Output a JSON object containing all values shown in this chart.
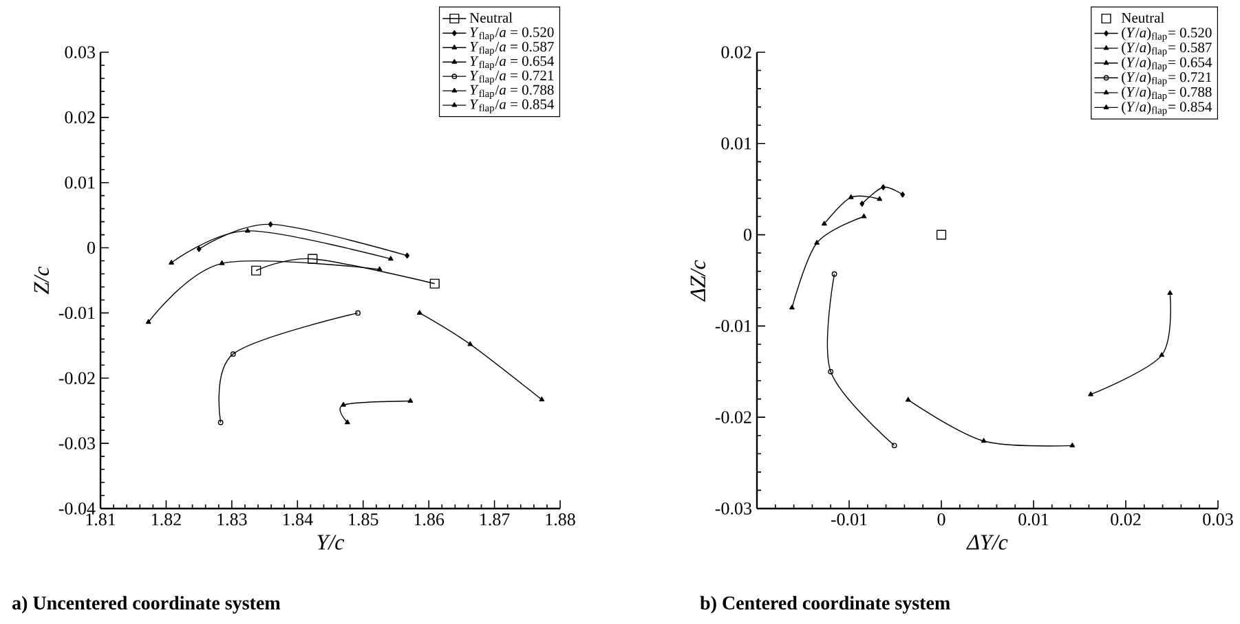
{
  "chart_data": [
    {
      "type": "line",
      "xlabel": "Y/c",
      "ylabel": "Z/c",
      "annotations": [
        "a) Uncentered coordinate system"
      ],
      "xlim": [
        1.81,
        1.88
      ],
      "xticks": [
        1.81,
        1.82,
        1.83,
        1.84,
        1.85,
        1.86,
        1.87,
        1.88
      ],
      "ylim": [
        -0.04,
        0.03
      ],
      "yticks": [
        -0.04,
        -0.03,
        -0.02,
        -0.01,
        0,
        0.01,
        0.02,
        0.03
      ],
      "legend": "top right",
      "line_style": "solid",
      "series": [
        {
          "name": "Neutral",
          "color": "#000000",
          "marker": "square",
          "x": [
            1.8337,
            1.8423,
            1.8609
          ],
          "values": [
            -0.0035,
            -0.0017,
            -0.0055
          ]
        },
        {
          "name": "*Y*$_{flap}$/*a* = 0.520",
          "color": "#000000",
          "marker": "diamond",
          "x": [
            1.825,
            1.8359,
            1.8567
          ],
          "values": [
            -0.0002,
            0.0036,
            -0.0012
          ]
        },
        {
          "name": "*Y*$_{flap}$/*a* = 0.587",
          "color": "#000000",
          "marker": "triangle",
          "x": [
            1.8208,
            1.8324,
            1.8542
          ],
          "values": [
            -0.0023,
            0.0026,
            -0.0017
          ]
        },
        {
          "name": "*Y*$_{flap}$/*a* = 0.654",
          "color": "#000000",
          "marker": "triangle",
          "x": [
            1.8173,
            1.8285,
            1.8525
          ],
          "values": [
            -0.0114,
            -0.0024,
            -0.0033
          ]
        },
        {
          "name": "*Y*$_{flap}$/*a* = 0.721",
          "color": "#000000",
          "marker": "circle",
          "x": [
            1.8492,
            1.8302,
            1.8283
          ],
          "values": [
            -0.01,
            -0.0163,
            -0.0268
          ]
        },
        {
          "name": "*Y*$_{flap}$/*a* = 0.788",
          "color": "#000000",
          "marker": "triangle",
          "x": [
            1.8572,
            1.847,
            1.8476
          ],
          "values": [
            -0.0235,
            -0.0241,
            -0.0268
          ]
        },
        {
          "name": "*Y*$_{flap}$/*a* = 0.854",
          "color": "#000000",
          "marker": "triangle",
          "x": [
            1.8586,
            1.8663,
            1.8772
          ],
          "values": [
            -0.01,
            -0.0148,
            -0.0233
          ]
        }
      ]
    },
    {
      "type": "line",
      "xlabel": "ΔY/c",
      "ylabel": "ΔZ/c",
      "annotations": [
        "b) Centered coordinate system"
      ],
      "xlim": [
        -0.02,
        0.03
      ],
      "xticks": [
        {
          "value": -0.02,
          "label": null
        },
        -0.01,
        0,
        0.01,
        0.02,
        0.03
      ],
      "ylim": [
        -0.03,
        0.02
      ],
      "yticks": [
        -0.03,
        -0.02,
        -0.01,
        0,
        0.01,
        0.02
      ],
      "legend": "top right",
      "line_style": "solid",
      "series": [
        {
          "name": "Neutral",
          "type": "scatter",
          "color": "#000000",
          "marker": "square",
          "x": [
            0
          ],
          "values": [
            0
          ]
        },
        {
          "name": "(*Y*/*a*)$_{flap}$= 0.520",
          "color": "#000000",
          "marker": "diamond",
          "x": [
            -0.0086,
            -0.0063,
            -0.0042
          ],
          "values": [
            0.0034,
            0.0052,
            0.0044
          ]
        },
        {
          "name": "(*Y*/*a*)$_{flap}$= 0.587",
          "color": "#000000",
          "marker": "triangle",
          "x": [
            -0.0127,
            -0.0098,
            -0.0067
          ],
          "values": [
            0.0012,
            0.0041,
            0.0039
          ]
        },
        {
          "name": "(*Y*/*a*)$_{flap}$= 0.654",
          "color": "#000000",
          "marker": "triangle",
          "x": [
            -0.0162,
            -0.0135,
            -0.0084
          ],
          "values": [
            -0.008,
            -0.0009,
            0.002
          ]
        },
        {
          "name": "(*Y*/*a*)$_{flap}$= 0.721",
          "color": "#000000",
          "marker": "circle",
          "x": [
            -0.0116,
            -0.012,
            -0.0051
          ],
          "values": [
            -0.0043,
            -0.015,
            -0.0231
          ]
        },
        {
          "name": "(*Y*/*a*)$_{flap}$= 0.788",
          "color": "#000000",
          "marker": "triangle",
          "x": [
            -0.0036,
            0.0046,
            0.0142
          ],
          "values": [
            -0.0181,
            -0.0226,
            -0.0231
          ]
        },
        {
          "name": "(*Y*/*a*)$_{flap}$= 0.854",
          "color": "#000000",
          "marker": "triangle",
          "x": [
            0.0248,
            0.0239,
            0.0162
          ],
          "values": [
            -0.0064,
            -0.0132,
            -0.0175
          ]
        }
      ]
    }
  ]
}
